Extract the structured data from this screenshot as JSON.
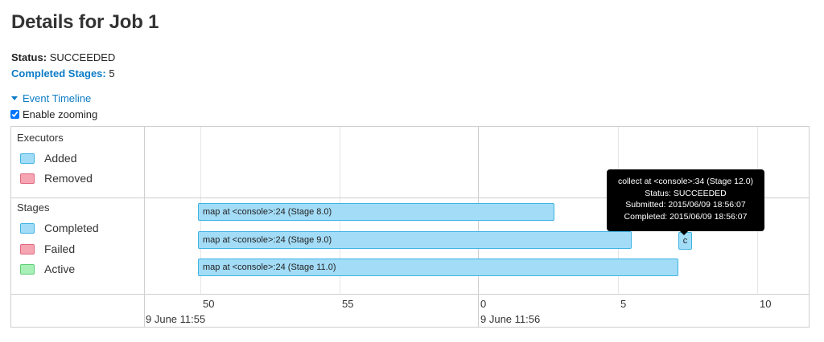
{
  "page": {
    "title": "Details for Job 1",
    "status_label": "Status:",
    "status_value": "SUCCEEDED",
    "completed_stages_label": "Completed Stages:",
    "completed_stages_value": "5",
    "event_timeline_label": "Event Timeline",
    "enable_zooming_label": "Enable zooming",
    "enable_zooming_checked": true
  },
  "timeline": {
    "executors": {
      "title": "Executors",
      "legend": [
        {
          "label": "Added",
          "color": "#a3dcf7"
        },
        {
          "label": "Removed",
          "color": "#f6a5b3"
        }
      ]
    },
    "stages": {
      "title": "Stages",
      "legend": [
        {
          "label": "Completed",
          "color": "#a3dcf7"
        },
        {
          "label": "Failed",
          "color": "#f6a5b3"
        },
        {
          "label": "Active",
          "color": "#a8f0b8"
        }
      ],
      "bars": [
        {
          "label": "map at <console>:24 (Stage 8.0)",
          "status": "completed"
        },
        {
          "label": "map at <console>:24 (Stage 9.0)",
          "status": "completed"
        },
        {
          "label": "c",
          "status": "completed"
        },
        {
          "label": "map at <console>:24 (Stage 11.0)",
          "status": "completed"
        }
      ]
    },
    "axis": {
      "ticks": [
        "50",
        "55",
        "0",
        "5",
        "10"
      ],
      "dates": [
        "9 June 11:55",
        "9 June 11:56"
      ]
    },
    "tooltip": {
      "title": "collect at <console>:34 (Stage 12.0)",
      "status": "Status: SUCCEEDED",
      "submitted": "Submitted: 2015/06/09 18:56:07",
      "completed": "Completed: 2015/06/09 18:56:07"
    }
  }
}
